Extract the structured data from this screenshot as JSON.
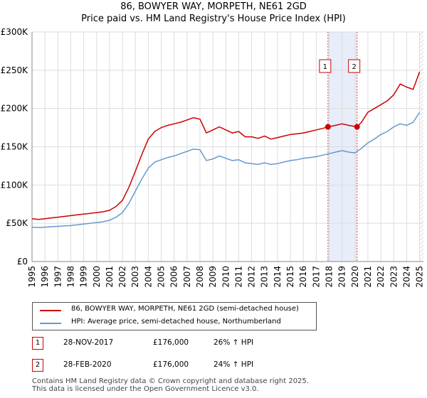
{
  "chart_data": {
    "type": "line",
    "title": "86, BOWYER WAY, MORPETH, NE61 2GD",
    "subtitle": "Price paid vs. HM Land Registry's House Price Index (HPI)",
    "xlabel": "",
    "ylabel": "",
    "xlim": [
      1995,
      2025.3
    ],
    "ylim": [
      0,
      300000
    ],
    "x_ticks": [
      "1995",
      "1996",
      "1997",
      "1998",
      "1999",
      "2000",
      "2001",
      "2002",
      "2003",
      "2004",
      "2005",
      "2006",
      "2007",
      "2008",
      "2009",
      "2010",
      "2011",
      "2012",
      "2013",
      "2014",
      "2015",
      "2016",
      "2017",
      "2018",
      "2019",
      "2020",
      "2021",
      "2022",
      "2023",
      "2024",
      "2025"
    ],
    "y_ticks": [
      {
        "value": 0,
        "label": "£0"
      },
      {
        "value": 50000,
        "label": "£50K"
      },
      {
        "value": 100000,
        "label": "£100K"
      },
      {
        "value": 150000,
        "label": "£150K"
      },
      {
        "value": 200000,
        "label": "£200K"
      },
      {
        "value": 250000,
        "label": "£250K"
      },
      {
        "value": 300000,
        "label": "£300K"
      }
    ],
    "grid": true,
    "series": [
      {
        "name": "86, BOWYER WAY, MORPETH, NE61 2GD (semi-detached house)",
        "color": "#cc0000",
        "x": [
          1995,
          1995.5,
          1996,
          1996.5,
          1997,
          1997.5,
          1998,
          1998.5,
          1999,
          1999.5,
          2000,
          2000.5,
          2001,
          2001.5,
          2002,
          2002.5,
          2003,
          2003.5,
          2004,
          2004.5,
          2005,
          2005.5,
          2006,
          2006.5,
          2007,
          2007.5,
          2008,
          2008.5,
          2009,
          2009.5,
          2010,
          2010.5,
          2011,
          2011.5,
          2012,
          2012.5,
          2013,
          2013.5,
          2014,
          2014.5,
          2015,
          2015.5,
          2016,
          2016.5,
          2017,
          2017.5,
          2017.9,
          2018.5,
          2019,
          2019.5,
          2020.16,
          2020.5,
          2021,
          2021.5,
          2022,
          2022.5,
          2023,
          2023.5,
          2024,
          2024.5,
          2025
        ],
        "y": [
          56000,
          55000,
          56000,
          57000,
          58000,
          59000,
          60000,
          61000,
          62000,
          63000,
          64000,
          65000,
          67000,
          72000,
          80000,
          97000,
          118000,
          140000,
          160000,
          170000,
          175000,
          178000,
          180000,
          182000,
          185000,
          188000,
          186000,
          168000,
          172000,
          176000,
          172000,
          168000,
          170000,
          163000,
          163000,
          161000,
          164000,
          160000,
          162000,
          164000,
          166000,
          167000,
          168000,
          170000,
          172000,
          174000,
          176000,
          178000,
          180000,
          178000,
          176000,
          182000,
          195000,
          200000,
          205000,
          210000,
          218000,
          232000,
          228000,
          225000,
          248000
        ]
      },
      {
        "name": "HPI: Average price, semi-detached house, Northumberland",
        "color": "#6699cc",
        "x": [
          1995,
          1995.5,
          1996,
          1996.5,
          1997,
          1997.5,
          1998,
          1998.5,
          1999,
          1999.5,
          2000,
          2000.5,
          2001,
          2001.5,
          2002,
          2002.5,
          2003,
          2003.5,
          2004,
          2004.5,
          2005,
          2005.5,
          2006,
          2006.5,
          2007,
          2007.5,
          2008,
          2008.5,
          2009,
          2009.5,
          2010,
          2010.5,
          2011,
          2011.5,
          2012,
          2012.5,
          2013,
          2013.5,
          2014,
          2014.5,
          2015,
          2015.5,
          2016,
          2016.5,
          2017,
          2017.5,
          2018,
          2018.5,
          2019,
          2019.5,
          2020,
          2020.5,
          2021,
          2021.5,
          2022,
          2022.5,
          2023,
          2023.5,
          2024,
          2024.5,
          2025
        ],
        "y": [
          45000,
          44500,
          45000,
          45500,
          46000,
          46500,
          47000,
          48000,
          49000,
          50000,
          51000,
          52000,
          54000,
          58000,
          64000,
          76000,
          92000,
          108000,
          122000,
          130000,
          133000,
          136000,
          138000,
          141000,
          144000,
          147000,
          146000,
          132000,
          134000,
          138000,
          135000,
          132000,
          133000,
          129000,
          128000,
          127000,
          129000,
          127000,
          128000,
          130000,
          132000,
          133000,
          135000,
          136000,
          137000,
          139000,
          141000,
          143000,
          145000,
          143000,
          142000,
          148000,
          155000,
          160000,
          166000,
          170000,
          176000,
          180000,
          178000,
          182000,
          195000
        ]
      }
    ],
    "transactions": [
      {
        "id": "1",
        "date": "28-NOV-2017",
        "price": "£176,000",
        "hpi": "26% ↑ HPI",
        "x": 2017.91,
        "y": 176000
      },
      {
        "id": "2",
        "date": "28-FEB-2020",
        "price": "£176,000",
        "hpi": "24% ↑ HPI",
        "x": 2020.16,
        "y": 176000
      }
    ],
    "shaded_period": [
      2017.91,
      2020.16
    ],
    "future_hatch_from": 2025.0
  },
  "legend": {
    "entries": [
      {
        "label": "86, BOWYER WAY, MORPETH, NE61 2GD (semi-detached house)",
        "color": "#cc0000"
      },
      {
        "label": "HPI: Average price, semi-detached house, Northumberland",
        "color": "#6699cc"
      }
    ]
  },
  "footer": {
    "line1": "Contains HM Land Registry data © Crown copyright and database right 2025.",
    "line2": "This data is licensed under the Open Government Licence v3.0."
  }
}
